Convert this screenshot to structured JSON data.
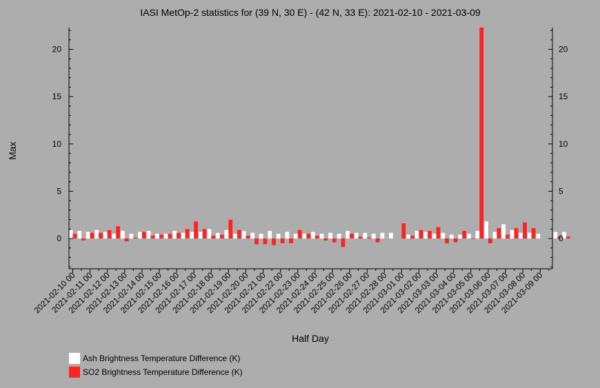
{
  "title": "IASI MetOp-2 statistics for (39 N, 30 E) - (42 N, 33 E): 2021-02-10 - 2021-03-09",
  "chart_data": {
    "type": "bar",
    "xlabel": "Half Day",
    "ylabel": "Max",
    "ylim": [
      -3.2,
      22.3
    ],
    "yticks": [
      0,
      5,
      10,
      15,
      20
    ],
    "xtick_labels": [
      "2021-02-10 00",
      "2021-02-11 00",
      "2021-02-12 00",
      "2021-02-13 00",
      "2021-02-14 00",
      "2021-02-15 00",
      "2021-02-16 00",
      "2021-02-17 00",
      "2021-02-18 00",
      "2021-02-19 00",
      "2021-02-20 00",
      "2021-02-21 00",
      "2021-02-22 00",
      "2021-02-23 00",
      "2021-02-24 00",
      "2021-02-25 00",
      "2021-02-26 00",
      "2021-02-27 00",
      "2021-02-28 00",
      "2021-03-01 00",
      "2021-03-02 00",
      "2021-03-03 00",
      "2021-03-04 00",
      "2021-03-05 00",
      "2021-03-06 00",
      "2021-03-07 00",
      "2021-03-08 00",
      "2021-03-09 00"
    ],
    "grid": false,
    "legend_position": "bottom-left",
    "series": [
      {
        "name": "Ash Brightness Temperature Difference (K)",
        "color": "#ffffff",
        "values": [
          0.9,
          0.8,
          0.7,
          0.9,
          0.7,
          0.5,
          0.8,
          0.5,
          0.7,
          0.8,
          0.5,
          0.5,
          0.8,
          0.6,
          0.7,
          0.7,
          1.0,
          0.6,
          0.9,
          0.5,
          0.8,
          0.6,
          0.5,
          0.8,
          0.5,
          0.7,
          0.5,
          0.5,
          0.7,
          0.5,
          0.6,
          0.5,
          0.8,
          0.6,
          0.6,
          0.5,
          0.6,
          0.6,
          null,
          0.4,
          0.8,
          0.7,
          0.5,
          0.6,
          0.4,
          0.4,
          0.5,
          0.8,
          1.8,
          0.7,
          1.5,
          0.9,
          0.6,
          0.6,
          0.5,
          null,
          0.7,
          0.7
        ]
      },
      {
        "name": "SO2 Brightness Temperature Difference (K)",
        "color": "#ff2222",
        "values": [
          0.5,
          -0.2,
          0.6,
          0.6,
          0.9,
          1.3,
          -0.3,
          0.1,
          0.7,
          0.3,
          0.4,
          0.5,
          0.6,
          1.0,
          1.8,
          1.0,
          0.3,
          0.4,
          2.0,
          0.9,
          0.3,
          -0.6,
          -0.6,
          -0.7,
          -0.5,
          -0.5,
          0.9,
          0.5,
          0.3,
          -0.2,
          -0.4,
          -0.9,
          0.5,
          0.2,
          0.1,
          -0.4,
          null,
          null,
          1.6,
          0.3,
          0.9,
          0.8,
          1.2,
          -0.5,
          -0.4,
          0.8,
          0.0,
          22.3,
          -0.5,
          1.1,
          0.4,
          1.1,
          1.7,
          1.1,
          null,
          null,
          0.2,
          0.2
        ]
      }
    ]
  }
}
